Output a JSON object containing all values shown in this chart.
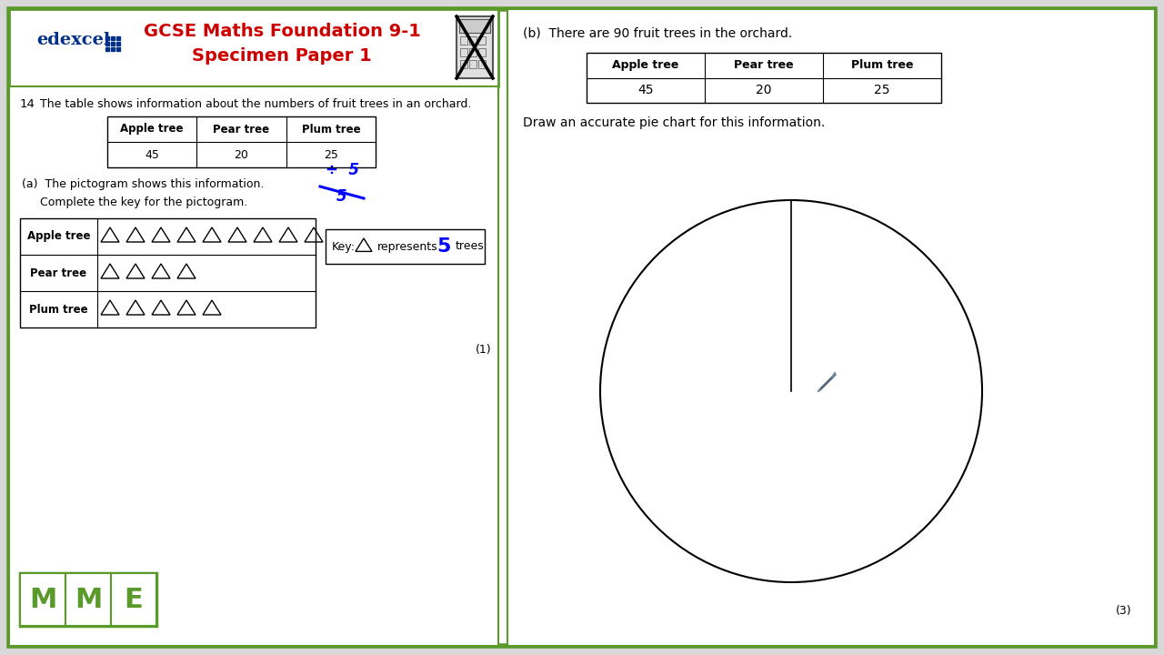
{
  "edexcel_color": "#003087",
  "title_color": "#cc0000",
  "border_color": "#5a9a2a",
  "bg_color": "#ffffff",
  "overall_bg": "#d8d8d8",
  "left_panel": {
    "question_num": "14",
    "question_text": "The table shows information about the numbers of fruit trees in an orchard.",
    "table_headers": [
      "Apple tree",
      "Pear tree",
      "Plum tree"
    ],
    "table_values": [
      "45",
      "20",
      "25"
    ],
    "part_a_text": "(a)  The pictogram shows this information.",
    "part_a_sub": "Complete the key for the pictogram.",
    "pictogram_rows": [
      "Apple tree",
      "Pear tree",
      "Plum tree"
    ],
    "pictogram_counts": [
      9,
      4,
      5
    ],
    "key_text": "Key:",
    "key_represents": "represents",
    "key_number": "5",
    "key_unit": "trees",
    "score_a": "(1)"
  },
  "right_panel": {
    "part_b_text": "(b)  There are 90 fruit trees in the orchard.",
    "table_headers": [
      "Apple tree",
      "Pear tree",
      "Plum tree"
    ],
    "table_values": [
      "45",
      "20",
      "25"
    ],
    "instruction": "Draw an accurate pie chart for this information.",
    "score_b": "(3)"
  }
}
